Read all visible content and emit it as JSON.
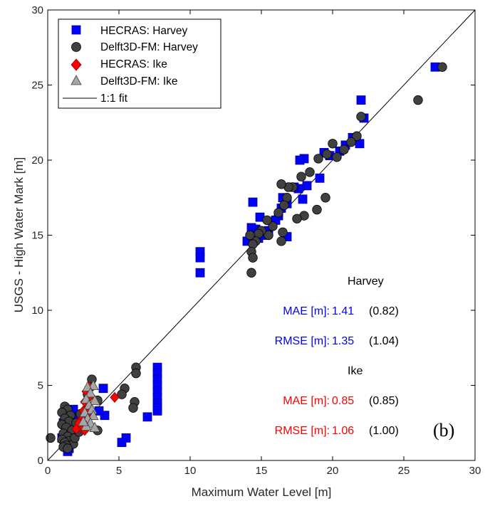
{
  "chart_data": {
    "type": "scatter",
    "xlabel": "Maximum Water Level [m]",
    "ylabel": "USGS - High Water Mark [m]",
    "xlim": [
      0,
      30
    ],
    "ylim": [
      0,
      30
    ],
    "xticks": [
      "0",
      "5",
      "10",
      "15",
      "20",
      "25",
      "30"
    ],
    "yticks": [
      "0",
      "5",
      "10",
      "15",
      "20",
      "25",
      "30"
    ],
    "grid": false,
    "legend_position": "top-left",
    "panel_label": "(b)",
    "one_to_one": {
      "name": "1:1 fit",
      "x": [
        0,
        30
      ],
      "y": [
        0,
        30
      ]
    },
    "series": [
      {
        "name": "HECRAS: Harvey",
        "marker": "square",
        "color": "#0000ff",
        "points": [
          [
            27.2,
            26.2
          ],
          [
            22.0,
            24.0
          ],
          [
            22.2,
            22.8
          ],
          [
            21.9,
            21.1
          ],
          [
            21.4,
            21.5
          ],
          [
            20.9,
            21.0
          ],
          [
            20.5,
            20.6
          ],
          [
            19.8,
            20.3
          ],
          [
            19.4,
            20.5
          ],
          [
            19.1,
            18.8
          ],
          [
            18.2,
            18.3
          ],
          [
            18.0,
            20.1
          ],
          [
            17.7,
            20.0
          ],
          [
            17.6,
            18.1
          ],
          [
            17.9,
            17.4
          ],
          [
            17.3,
            18.2
          ],
          [
            16.5,
            17.5
          ],
          [
            16.4,
            16.8
          ],
          [
            16.2,
            16.3
          ],
          [
            16.0,
            16.0
          ],
          [
            16.8,
            17.1
          ],
          [
            15.5,
            15.3
          ],
          [
            14.9,
            16.2
          ],
          [
            14.6,
            15.4
          ],
          [
            14.4,
            17.2
          ],
          [
            14.3,
            15.5
          ],
          [
            14.8,
            14.8
          ],
          [
            14.0,
            14.6
          ],
          [
            16.8,
            14.9
          ],
          [
            15.2,
            15.0
          ],
          [
            10.7,
            13.9
          ],
          [
            10.7,
            13.5
          ],
          [
            10.7,
            12.5
          ],
          [
            7.7,
            6.2
          ],
          [
            7.7,
            5.8
          ],
          [
            7.7,
            5.4
          ],
          [
            7.7,
            5.0
          ],
          [
            7.7,
            4.6
          ],
          [
            7.7,
            4.2
          ],
          [
            7.7,
            3.8
          ],
          [
            7.7,
            3.5
          ],
          [
            7.7,
            3.3
          ],
          [
            7.0,
            2.9
          ],
          [
            5.5,
            1.5
          ],
          [
            5.2,
            1.2
          ],
          [
            3.9,
            4.8
          ],
          [
            4.0,
            3.0
          ],
          [
            3.6,
            3.3
          ],
          [
            1.8,
            3.4
          ],
          [
            1.5,
            2.9
          ],
          [
            1.3,
            2.2
          ],
          [
            1.0,
            1.5
          ],
          [
            1.2,
            1.0
          ],
          [
            1.5,
            0.8
          ],
          [
            2.0,
            2.8
          ],
          [
            2.2,
            2.3
          ],
          [
            1.7,
            1.9
          ],
          [
            1.4,
            0.6
          ],
          [
            2.6,
            3.0
          ],
          [
            1.1,
            2.5
          ]
        ]
      },
      {
        "name": "Delft3D-FM: Harvey",
        "marker": "circle",
        "color": "#404040",
        "points": [
          [
            27.7,
            26.2
          ],
          [
            26.0,
            24.0
          ],
          [
            22.0,
            22.9
          ],
          [
            21.7,
            21.6
          ],
          [
            21.3,
            21.2
          ],
          [
            20.8,
            20.7
          ],
          [
            20.3,
            20.2
          ],
          [
            20.0,
            21.1
          ],
          [
            19.6,
            20.4
          ],
          [
            19.5,
            17.5
          ],
          [
            19.0,
            20.1
          ],
          [
            18.9,
            16.7
          ],
          [
            18.4,
            19.2
          ],
          [
            18.0,
            16.3
          ],
          [
            17.8,
            18.9
          ],
          [
            17.5,
            16.1
          ],
          [
            17.2,
            18.2
          ],
          [
            16.9,
            18.2
          ],
          [
            16.8,
            17.5
          ],
          [
            16.6,
            17.0
          ],
          [
            16.5,
            15.2
          ],
          [
            16.4,
            14.6
          ],
          [
            16.4,
            18.4
          ],
          [
            16.2,
            16.5
          ],
          [
            15.8,
            15.6
          ],
          [
            15.5,
            15.0
          ],
          [
            15.4,
            16.0
          ],
          [
            15.0,
            15.3
          ],
          [
            14.8,
            15.1
          ],
          [
            14.6,
            14.6
          ],
          [
            14.4,
            14.4
          ],
          [
            14.3,
            13.9
          ],
          [
            14.4,
            13.5
          ],
          [
            14.3,
            12.5
          ],
          [
            14.2,
            15.0
          ],
          [
            6.2,
            6.2
          ],
          [
            6.2,
            5.8
          ],
          [
            5.4,
            4.8
          ],
          [
            5.2,
            4.4
          ],
          [
            6.1,
            3.9
          ],
          [
            6.0,
            3.5
          ],
          [
            3.1,
            5.4
          ],
          [
            3.0,
            4.9
          ],
          [
            2.8,
            4.4
          ],
          [
            3.5,
            4.0
          ],
          [
            3.5,
            2.0
          ],
          [
            1.2,
            3.6
          ],
          [
            1.4,
            3.4
          ],
          [
            1.0,
            3.2
          ],
          [
            1.6,
            3.0
          ],
          [
            1.2,
            2.8
          ],
          [
            1.5,
            2.6
          ],
          [
            1.0,
            2.4
          ],
          [
            1.3,
            2.2
          ],
          [
            1.7,
            2.0
          ],
          [
            1.1,
            1.8
          ],
          [
            1.4,
            1.6
          ],
          [
            1.0,
            1.4
          ],
          [
            1.5,
            1.3
          ],
          [
            1.2,
            1.2
          ],
          [
            1.8,
            1.1
          ],
          [
            1.3,
            1.0
          ],
          [
            1.1,
            0.9
          ],
          [
            1.4,
            0.8
          ],
          [
            0.2,
            1.5
          ],
          [
            2.0,
            2.5
          ],
          [
            2.3,
            3.1
          ],
          [
            2.5,
            2.6
          ],
          [
            1.9,
            1.5
          ],
          [
            2.2,
            1.9
          ]
        ]
      },
      {
        "name": "HECRAS: Ike",
        "marker": "diamond",
        "color": "#ff0000",
        "points": [
          [
            4.7,
            4.2
          ],
          [
            2.9,
            4.9
          ],
          [
            2.7,
            4.6
          ],
          [
            3.0,
            4.3
          ],
          [
            2.6,
            3.9
          ],
          [
            2.9,
            3.6
          ],
          [
            2.5,
            3.3
          ],
          [
            2.8,
            3.1
          ],
          [
            2.4,
            2.8
          ],
          [
            2.7,
            2.5
          ],
          [
            2.3,
            2.2
          ],
          [
            2.0,
            2.1
          ],
          [
            2.6,
            2.0
          ],
          [
            2.2,
            2.5
          ]
        ]
      },
      {
        "name": "Delft3D-FM: Ike",
        "marker": "triangle",
        "color": "#a6a6a6",
        "points": [
          [
            3.2,
            5.0
          ],
          [
            2.8,
            4.9
          ],
          [
            3.0,
            4.5
          ],
          [
            2.7,
            4.1
          ],
          [
            3.3,
            4.0
          ],
          [
            2.9,
            3.7
          ],
          [
            3.1,
            3.4
          ],
          [
            2.6,
            3.2
          ],
          [
            3.2,
            3.0
          ],
          [
            2.8,
            2.8
          ],
          [
            3.0,
            2.5
          ],
          [
            2.7,
            2.3
          ],
          [
            3.3,
            2.2
          ],
          [
            2.5,
            2.6
          ]
        ]
      }
    ],
    "annotations": {
      "harvey_header": "Harvey",
      "ike_header": "Ike",
      "harvey_mae_label": "MAE [m]:",
      "harvey_mae_value": "1.41",
      "harvey_mae_paren": "(0.82)",
      "harvey_rmse_label": "RMSE [m]:",
      "harvey_rmse_value": "1.35",
      "harvey_rmse_paren": "(1.04)",
      "ike_mae_label": "MAE [m]:",
      "ike_mae_value": "0.85",
      "ike_mae_paren": "(0.85)",
      "ike_rmse_label": "RMSE [m]:",
      "ike_rmse_value": "1.06",
      "ike_rmse_paren": "(1.00)",
      "harvey_color": "#0000ff",
      "ike_color": "#ff0000"
    }
  }
}
